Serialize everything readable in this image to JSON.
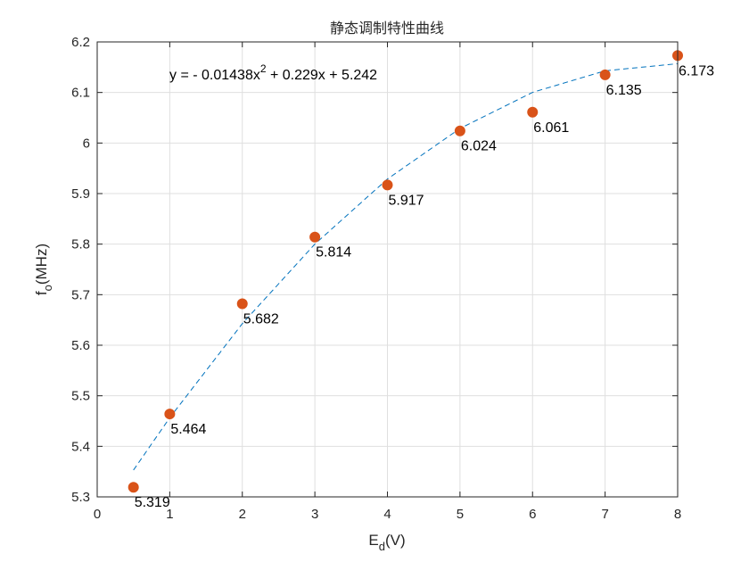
{
  "chart_data": {
    "type": "scatter",
    "title": "静态调制特性曲线",
    "xlabel": {
      "main": "E",
      "sub": "d",
      "rest": "(V)"
    },
    "ylabel": {
      "main": "f",
      "sub": "o",
      "rest": "(MHz)"
    },
    "xlim": [
      0,
      8
    ],
    "ylim": [
      5.3,
      6.2
    ],
    "xticks": [
      0,
      1,
      2,
      3,
      4,
      5,
      6,
      7,
      8
    ],
    "yticks": [
      5.3,
      5.4,
      5.5,
      5.6,
      5.7,
      5.8,
      5.9,
      6.0,
      6.1,
      6.2
    ],
    "yticks_labels": [
      "5.3",
      "5.4",
      "5.5",
      "5.6",
      "5.7",
      "5.8",
      "5.9",
      "6",
      "6.1",
      "6.2"
    ],
    "grid": true,
    "series": [
      {
        "kind": "points",
        "color": "#D95319",
        "x": [
          0.5,
          1,
          2,
          3,
          4,
          5,
          6,
          7,
          8
        ],
        "y": [
          5.319,
          5.464,
          5.682,
          5.814,
          5.917,
          6.024,
          6.061,
          6.135,
          6.173
        ],
        "labels": [
          "5.319",
          "5.464",
          "5.682",
          "5.814",
          "5.917",
          "6.024",
          "6.061",
          "6.135",
          "6.173"
        ]
      },
      {
        "kind": "fit",
        "color": "#0072BD",
        "style": "dashed",
        "x": [
          0.5,
          1,
          2,
          3,
          4,
          5,
          6,
          7,
          8
        ],
        "y": [
          5.353,
          5.4566,
          5.6427,
          5.8001,
          5.9288,
          6.0288,
          6.1002,
          6.1429,
          6.1569
        ]
      }
    ],
    "annotation": {
      "prefix": "y = - 0.01438x",
      "sup": "2",
      "suffix": " + 0.229x + 5.242"
    }
  }
}
